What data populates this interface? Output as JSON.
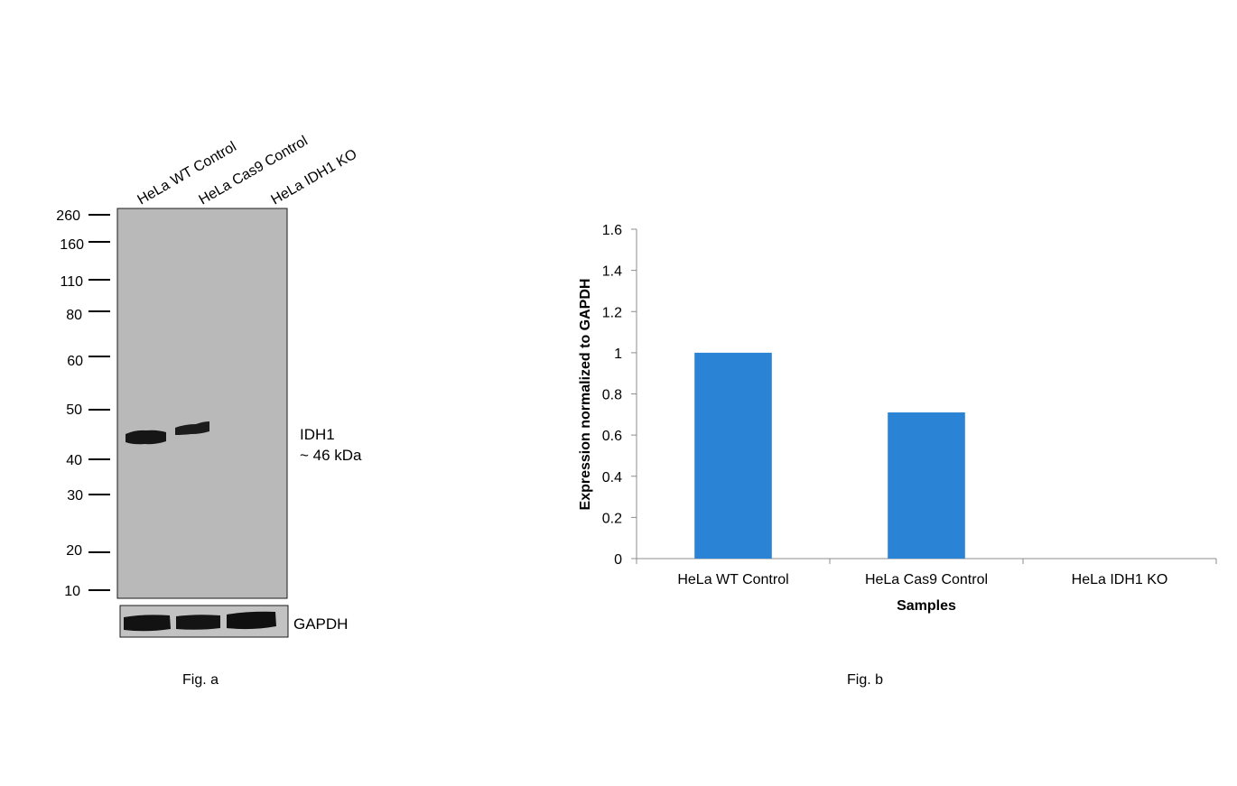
{
  "colors": {
    "blot_background": "#b9b9b9",
    "gapdh_background": "#c2c2c2",
    "band": "#161616",
    "bar": "#2b83d6",
    "axis": "#8c8c8c"
  },
  "figure_a": {
    "caption": "Fig. a",
    "lanes": [
      "HeLa WT Control",
      "HeLa Cas9 Control",
      "HeLa IDH1 KO"
    ],
    "mw_markers": [
      "260",
      "160",
      "110",
      "80",
      "60",
      "50",
      "40",
      "30",
      "20",
      "10"
    ],
    "band_label": "IDH1",
    "band_size_label": "~ 46 kDa",
    "loading_control_label": "GAPDH",
    "idh1_band_present": [
      true,
      true,
      false
    ],
    "gapdh_band_present": [
      true,
      true,
      true
    ]
  },
  "figure_b": {
    "caption": "Fig. b"
  },
  "chart_data": {
    "type": "bar",
    "title": "",
    "categories": [
      "HeLa WT Control",
      "HeLa Cas9 Control",
      "HeLa IDH1 KO"
    ],
    "values": [
      1.0,
      0.71,
      0.0
    ],
    "xlabel": "Samples",
    "ylabel": "Expression normalized to GAPDH",
    "ylim": [
      0,
      1.6
    ],
    "yticks": [
      "0",
      "0.2",
      "0.4",
      "0.6",
      "0.8",
      "1",
      "1.2",
      "1.4",
      "1.6"
    ],
    "grid": false,
    "legend": "none"
  }
}
